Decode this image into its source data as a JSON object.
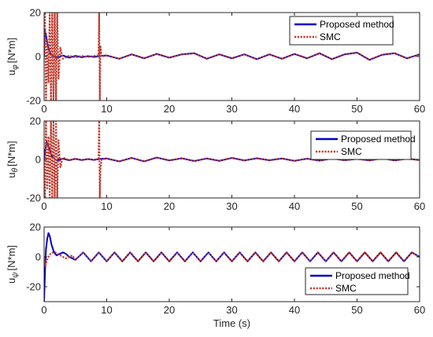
{
  "chart_data": [
    {
      "type": "line",
      "ylabel_main": "u",
      "ylabel_sub": "φ",
      "ylabel_unit": "[N*m]",
      "xlim": [
        0,
        60
      ],
      "ylim": [
        -20,
        20
      ],
      "xticks": [
        "0",
        "10",
        "20",
        "30",
        "40",
        "50",
        "60"
      ],
      "yticks": [
        "-20",
        "0",
        "20"
      ],
      "ytick_values": [
        -20,
        0,
        20
      ],
      "legend_position": "top-right",
      "series": [
        {
          "name": "Proposed method",
          "color": "#0000cc",
          "style": "solid",
          "x": [
            0,
            0.1,
            0.3,
            0.5,
            0.8,
            1.0,
            1.5,
            2,
            3,
            4,
            5,
            6,
            7,
            8,
            9,
            10,
            12,
            14,
            16,
            18,
            20,
            22,
            24,
            26,
            28,
            30,
            32,
            34,
            36,
            38,
            40,
            42,
            44,
            46,
            48,
            50,
            52,
            54,
            56,
            58,
            60
          ],
          "y": [
            0,
            12,
            10,
            6,
            3,
            1.5,
            0.2,
            -0.5,
            0.5,
            -0.5,
            0.3,
            -0.3,
            0.2,
            -0.2,
            0.3,
            0.5,
            -1,
            1,
            -0.8,
            1.2,
            -0.5,
            1,
            1.5,
            -1,
            1,
            -0.8,
            1,
            -1.2,
            1,
            -1,
            1.2,
            -0.8,
            1.5,
            -1.2,
            1,
            1.8,
            -1.5,
            0.8,
            1.5,
            -0.8,
            1
          ]
        },
        {
          "name": "SMC",
          "color": "#c0392b",
          "style": "dotted",
          "x": [
            0,
            0.15,
            0.3,
            0.5,
            0.7,
            0.9,
            1.1,
            1.3,
            1.5,
            1.7,
            1.9,
            2.1,
            2.3,
            2.6,
            3,
            4,
            5,
            6,
            7,
            8,
            8.7,
            8.8,
            8.9,
            9.0,
            9.2,
            10,
            12,
            14,
            16,
            18,
            20,
            22,
            24,
            26,
            28,
            30,
            32,
            34,
            36,
            38,
            40,
            42,
            44,
            46,
            48,
            50,
            52,
            54,
            56,
            58,
            60
          ],
          "y": [
            0,
            20,
            -20,
            8,
            -12,
            20,
            -20,
            20,
            -20,
            20,
            -20,
            20,
            -10,
            4,
            -1,
            0.4,
            -0.4,
            0.3,
            -0.2,
            0.3,
            0.5,
            20,
            -20,
            5,
            0,
            0.5,
            -1,
            1,
            -0.8,
            1.2,
            -0.5,
            1,
            1.5,
            -1,
            1,
            -0.8,
            1,
            -1.2,
            1,
            -1,
            1.2,
            -0.8,
            1.5,
            -1.2,
            1,
            1.8,
            -1.5,
            0.8,
            1.5,
            -0.8,
            1
          ]
        }
      ]
    },
    {
      "type": "line",
      "ylabel_main": "u",
      "ylabel_sub": "θ",
      "ylabel_unit": "[N*m]",
      "xlim": [
        0,
        60
      ],
      "ylim": [
        -20,
        20
      ],
      "xticks": [
        "0",
        "10",
        "20",
        "30",
        "40",
        "50",
        "60"
      ],
      "yticks": [
        "-20",
        "0",
        "20"
      ],
      "ytick_values": [
        -20,
        0,
        20
      ],
      "legend_position": "top-right",
      "series": [
        {
          "name": "Proposed method",
          "color": "#0000cc",
          "style": "solid",
          "x": [
            0,
            0.2,
            0.4,
            0.6,
            0.9,
            1.2,
            1.6,
            2,
            3,
            4,
            5,
            6,
            7,
            8,
            9,
            10,
            12,
            14,
            16,
            18,
            20,
            22,
            24,
            26,
            28,
            30,
            32,
            34,
            36,
            38,
            40,
            42,
            44,
            46,
            48,
            50,
            52,
            54,
            56,
            58,
            60
          ],
          "y": [
            0,
            5,
            9,
            8,
            5,
            2,
            0.5,
            -0.5,
            0.4,
            -0.4,
            0.3,
            -0.3,
            0.2,
            -0.2,
            0.3,
            0.5,
            -1,
            0.8,
            -1,
            1,
            -0.5,
            0.6,
            -0.8,
            0.5,
            -0.7,
            0.8,
            -0.5,
            0.6,
            -0.4,
            0.5,
            -0.7,
            0.4,
            -0.6,
            0.5,
            -0.4,
            0.3,
            -0.5,
            0.6,
            -0.5,
            0.4,
            -0.3
          ]
        },
        {
          "name": "SMC",
          "color": "#c0392b",
          "style": "dotted",
          "x": [
            0,
            0.15,
            0.3,
            0.5,
            0.7,
            0.9,
            1.1,
            1.3,
            1.5,
            1.7,
            1.9,
            2.1,
            2.3,
            2.6,
            3,
            4,
            5,
            6,
            7,
            8,
            8.7,
            8.8,
            8.9,
            9.0,
            9.2,
            10,
            12,
            14,
            16,
            18,
            20,
            22,
            24,
            26,
            28,
            30,
            32,
            34,
            36,
            38,
            40,
            42,
            44,
            46,
            48,
            50,
            52,
            54,
            56,
            58,
            60
          ],
          "y": [
            0,
            -20,
            20,
            -15,
            12,
            -20,
            20,
            -20,
            20,
            -20,
            20,
            -20,
            10,
            -4,
            1,
            -0.4,
            0.4,
            -0.3,
            0.2,
            -0.3,
            0.5,
            20,
            -20,
            -5,
            0,
            0.5,
            -1,
            0.8,
            -1,
            1,
            -0.5,
            0.6,
            -0.8,
            0.5,
            -0.7,
            0.8,
            -0.5,
            0.6,
            -0.4,
            0.5,
            -0.7,
            0.4,
            -0.6,
            0.5,
            -0.4,
            0.3,
            -0.5,
            0.6,
            -0.5,
            0.4,
            -0.3
          ]
        }
      ]
    },
    {
      "type": "line",
      "ylabel_main": "u",
      "ylabel_sub": "ψ",
      "ylabel_unit": "[N*m]",
      "xlabel": "Time (s)",
      "xlim": [
        0,
        60
      ],
      "ylim": [
        -30,
        20
      ],
      "xticks": [
        "0",
        "10",
        "20",
        "30",
        "40",
        "50",
        "60"
      ],
      "yticks": [
        "-20",
        "0",
        "20"
      ],
      "ytick_values": [
        -20,
        0,
        20
      ],
      "legend_position": "bottom-right",
      "series": [
        {
          "name": "Proposed method",
          "color": "#0000cc",
          "style": "solid",
          "x": [
            0,
            0.15,
            0.3,
            0.5,
            0.7,
            0.9,
            1.2,
            1.6,
            2.0,
            2.5,
            3.0,
            3.5,
            4.0,
            4.5,
            5.0,
            6.25,
            7.5,
            8.75,
            10,
            11.25,
            12.5,
            13.75,
            15,
            16.25,
            17.5,
            18.75,
            20,
            21.25,
            22.5,
            23.75,
            25,
            26.25,
            27.5,
            28.75,
            30,
            31.25,
            32.5,
            33.75,
            35,
            36.25,
            37.5,
            38.75,
            40,
            41.25,
            42.5,
            43.75,
            45,
            46.25,
            47.5,
            48.75,
            50,
            51.25,
            52.5,
            53.75,
            55,
            56.25,
            57.5,
            58.75,
            60
          ],
          "y": [
            -30,
            -10,
            5,
            12,
            16,
            14,
            8,
            3,
            1,
            2,
            3,
            2,
            0,
            -1,
            -2,
            3,
            -3,
            3,
            -3,
            3,
            -3,
            3,
            -3,
            3,
            -3,
            3,
            -3,
            3,
            -3,
            3,
            -3,
            3,
            -3,
            3,
            -3,
            3,
            -3,
            3,
            -3,
            3,
            -3,
            3,
            -3,
            3,
            -3,
            3,
            -3,
            3,
            -3,
            3,
            -3,
            3,
            -3,
            3,
            -3,
            3,
            -3,
            3,
            0
          ]
        },
        {
          "name": "SMC",
          "color": "#c0392b",
          "style": "dotted",
          "x": [
            0,
            0.2,
            0.4,
            0.7,
            1.0,
            1.4,
            1.8,
            2.2,
            2.6,
            3.0,
            3.5,
            4.0,
            4.5,
            5.0,
            6.25,
            7.5,
            8.75,
            10,
            11.25,
            12.5,
            13.75,
            15,
            16.25,
            17.5,
            18.75,
            20,
            21.25,
            22.5,
            23.75,
            25,
            26.25,
            27.5,
            28.75,
            30,
            31.25,
            32.5,
            33.75,
            35,
            36.25,
            37.5,
            38.75,
            40,
            41.25,
            42.5,
            43.75,
            45,
            46.25,
            47.5,
            48.75,
            50,
            51.25,
            52.5,
            53.75,
            55,
            56.25,
            57.5,
            58.75,
            60
          ],
          "y": [
            0,
            -6,
            -3,
            0,
            2,
            3,
            3,
            2,
            1,
            0,
            -1,
            0,
            1,
            -2,
            3,
            -3,
            3,
            -3,
            3,
            -3,
            3,
            -3,
            3,
            -3,
            3,
            -3,
            3,
            -3,
            3,
            -3,
            3,
            -3,
            3,
            -3,
            3,
            -3,
            3,
            -3,
            3,
            -3,
            3,
            -3,
            3,
            -3,
            3,
            -3,
            3,
            -3,
            3,
            -3,
            3,
            -3,
            3,
            -3,
            3,
            -3,
            3,
            0
          ]
        }
      ]
    }
  ]
}
